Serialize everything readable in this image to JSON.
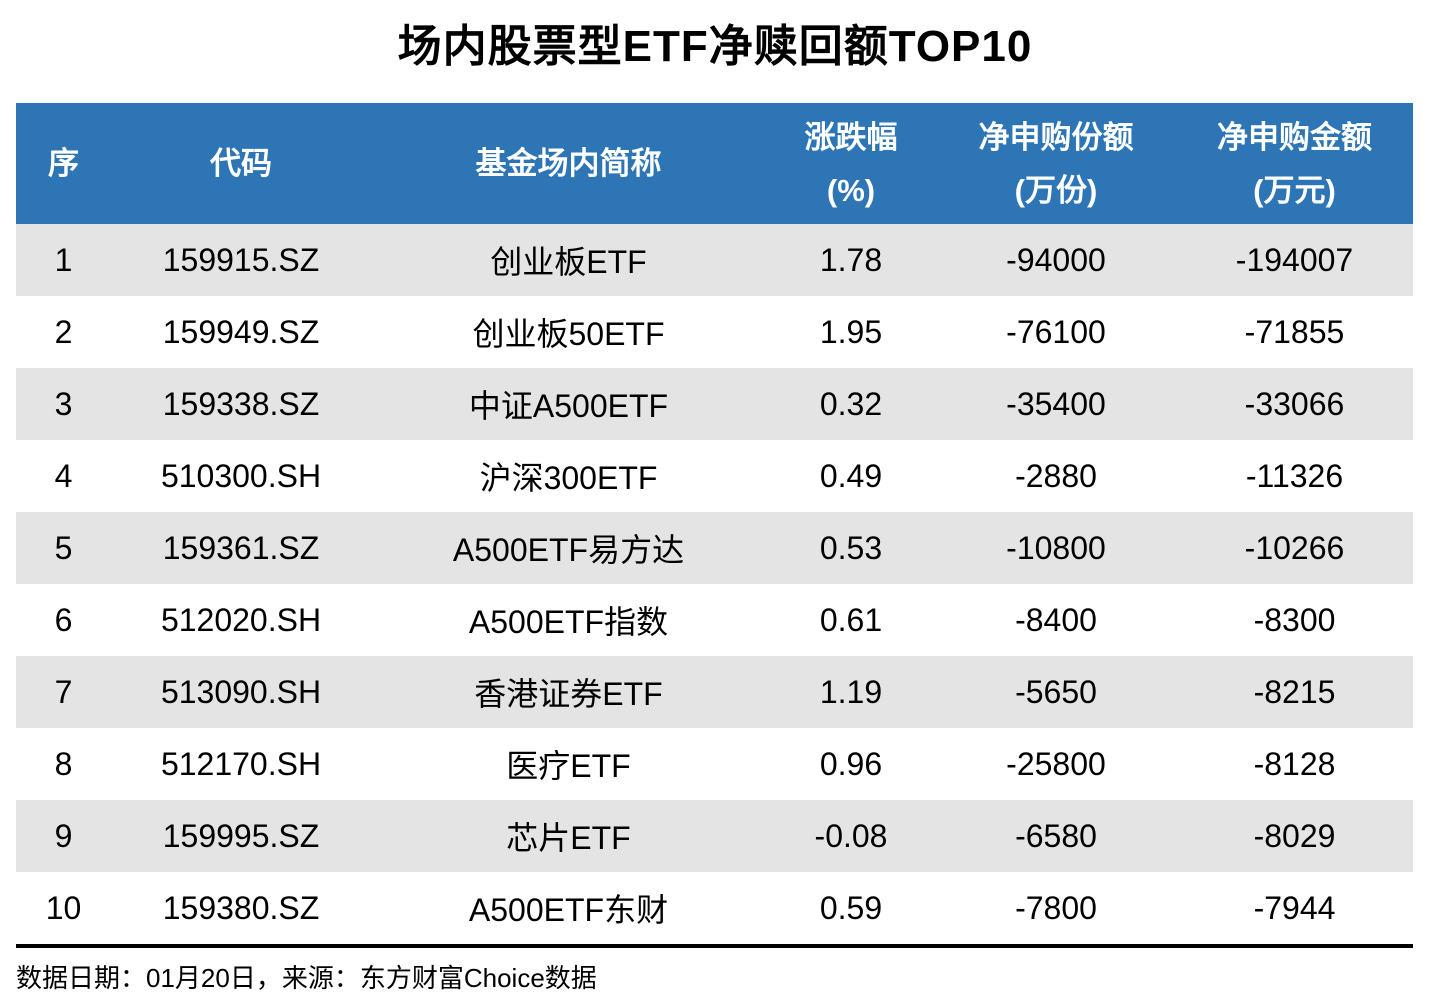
{
  "title": "场内股票型ETF净赎回额TOP10",
  "table": {
    "headers": [
      {
        "key": "seq",
        "lines": [
          "序"
        ]
      },
      {
        "key": "code",
        "lines": [
          "代码"
        ]
      },
      {
        "key": "name",
        "lines": [
          "基金场内简称"
        ]
      },
      {
        "key": "change-pct",
        "lines": [
          "涨跌幅",
          "(%)"
        ]
      },
      {
        "key": "net-shares",
        "lines": [
          "净申购份额",
          "(万份)"
        ]
      },
      {
        "key": "net-amount",
        "lines": [
          "净申购金额",
          "(万元)"
        ]
      }
    ]
  },
  "footer": {
    "text": "数据日期：01月20日，来源：东方财富Choice数据"
  },
  "colors": {
    "header_bg": "#2E75B6",
    "header_text": "#FFFFFF",
    "stripe": "#E4E4E4",
    "body_text": "#000000",
    "divider": "#000000"
  },
  "chart_data": {
    "type": "table",
    "title": "场内股票型ETF净赎回额TOP10",
    "columns": [
      "序",
      "代码",
      "基金场内简称",
      "涨跌幅(%)",
      "净申购份额(万份)",
      "净申购金额(万元)"
    ],
    "rows": [
      [
        "1",
        "159915.SZ",
        "创业板ETF",
        "1.78",
        "-94000",
        "-194007"
      ],
      [
        "2",
        "159949.SZ",
        "创业板50ETF",
        "1.95",
        "-76100",
        "-71855"
      ],
      [
        "3",
        "159338.SZ",
        "中证A500ETF",
        "0.32",
        "-35400",
        "-33066"
      ],
      [
        "4",
        "510300.SH",
        "沪深300ETF",
        "0.49",
        "-2880",
        "-11326"
      ],
      [
        "5",
        "159361.SZ",
        "A500ETF易方达",
        "0.53",
        "-10800",
        "-10266"
      ],
      [
        "6",
        "512020.SH",
        "A500ETF指数",
        "0.61",
        "-8400",
        "-8300"
      ],
      [
        "7",
        "513090.SH",
        "香港证券ETF",
        "1.19",
        "-5650",
        "-8215"
      ],
      [
        "8",
        "512170.SH",
        "医疗ETF",
        "0.96",
        "-25800",
        "-8128"
      ],
      [
        "9",
        "159995.SZ",
        "芯片ETF",
        "-0.08",
        "-6580",
        "-8029"
      ],
      [
        "10",
        "159380.SZ",
        "A500ETF东财",
        "0.59",
        "-7800",
        "-7944"
      ]
    ],
    "legend": null,
    "grid": false,
    "source_note": "数据日期：01月20日，来源：东方财富Choice数据"
  }
}
